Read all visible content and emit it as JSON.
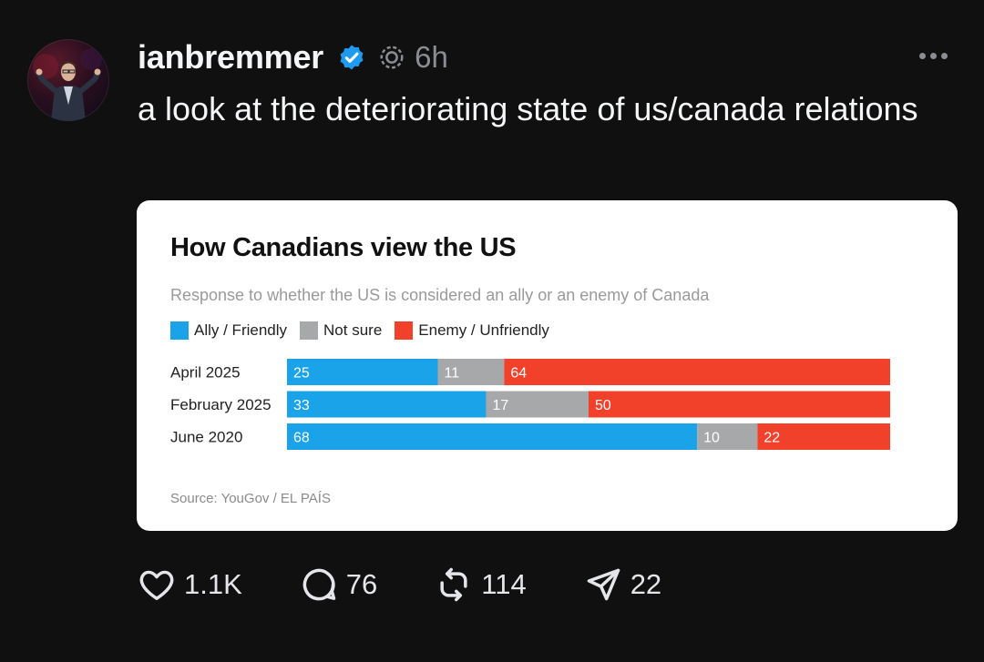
{
  "post": {
    "username": "ianbremmer",
    "timestamp": "6h",
    "text": "a look at the deteriorating state of us/canada relations"
  },
  "icons": {
    "verified": "verified-badge-icon",
    "thread": "threads-ai-icon",
    "more": "more-options-icon",
    "like": "heart-icon",
    "reply": "comment-icon",
    "repost": "repost-icon",
    "share": "send-icon"
  },
  "actions": {
    "likes": "1.1K",
    "replies": "76",
    "reposts": "114",
    "shares": "22"
  },
  "colors": {
    "ally": "#1aa3e8",
    "not_sure": "#a7a8aa",
    "enemy": "#f2412b",
    "verified": "#1d9bf0"
  },
  "chart_data": {
    "type": "bar",
    "orientation": "horizontal-stacked",
    "title": "How Canadians view the US",
    "subtitle": "Response to whether the US is considered an ally or an enemy of Canada",
    "categories": [
      "April 2025",
      "February 2025",
      "June 2020"
    ],
    "series": [
      {
        "name": "Ally / Friendly",
        "values": [
          25,
          33,
          68
        ]
      },
      {
        "name": "Not sure",
        "values": [
          11,
          17,
          10
        ]
      },
      {
        "name": "Enemy / Unfriendly",
        "values": [
          64,
          50,
          22
        ]
      }
    ],
    "source": "Source: YouGov / EL PAÍS",
    "legend": "top-left",
    "grid": false
  }
}
